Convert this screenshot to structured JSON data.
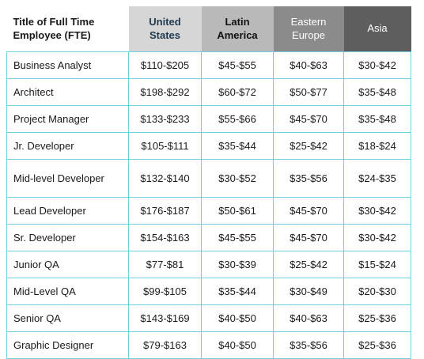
{
  "headers": [
    "Title of Full Time\nEmployee (FTE)",
    "United\nStates",
    "Latin\nAmerica",
    "Eastern\nEurope",
    "Asia"
  ],
  "rows": [
    {
      "role": "Business Analyst",
      "us": "$110-$205",
      "latam": "$45-$55",
      "ee": "$40-$63",
      "asia": "$30-$42"
    },
    {
      "role": "Architect",
      "us": "$198-$292",
      "latam": "$60-$72",
      "ee": "$50-$77",
      "asia": "$35-$48"
    },
    {
      "role": "Project Manager",
      "us": "$133-$233",
      "latam": "$55-$66",
      "ee": "$45-$70",
      "asia": "$35-$48"
    },
    {
      "role": "Jr. Developer",
      "us": "$105-$111",
      "latam": "$35-$44",
      "ee": "$25-$42",
      "asia": "$18-$24"
    },
    {
      "role": "Mid-level Developer",
      "us": "$132-$140",
      "latam": "$30-$52",
      "ee": "$35-$56",
      "asia": "$24-$35"
    },
    {
      "role": "Lead Developer",
      "us": "$176-$187",
      "latam": "$50-$61",
      "ee": "$45-$70",
      "asia": "$30-$42"
    },
    {
      "role": "Sr. Developer",
      "us": "$154-$163",
      "latam": "$45-$55",
      "ee": "$45-$70",
      "asia": "$30-$42"
    },
    {
      "role": "Junior QA",
      "us": "$77-$81",
      "latam": "$30-$39",
      "ee": "$25-$42",
      "asia": "$15-$24"
    },
    {
      "role": "Mid-Level QA",
      "us": "$99-$105",
      "latam": "$35-$44",
      "ee": "$30-$49",
      "asia": "$20-$30"
    },
    {
      "role": "Senior QA",
      "us": "$143-$169",
      "latam": "$40-$50",
      "ee": "$40-$63",
      "asia": "$25-$36"
    },
    {
      "role": "Graphic Designer",
      "us": "$79-$163",
      "latam": "$40-$50",
      "ee": "$35-$56",
      "asia": "$25-$36"
    }
  ],
  "colors": {
    "border": "#6fd0df",
    "header_us": "#d6d6d6",
    "header_latam": "#b9b9b9",
    "header_ee": "#8b8b8b",
    "header_asia": "#5e5e5e"
  }
}
